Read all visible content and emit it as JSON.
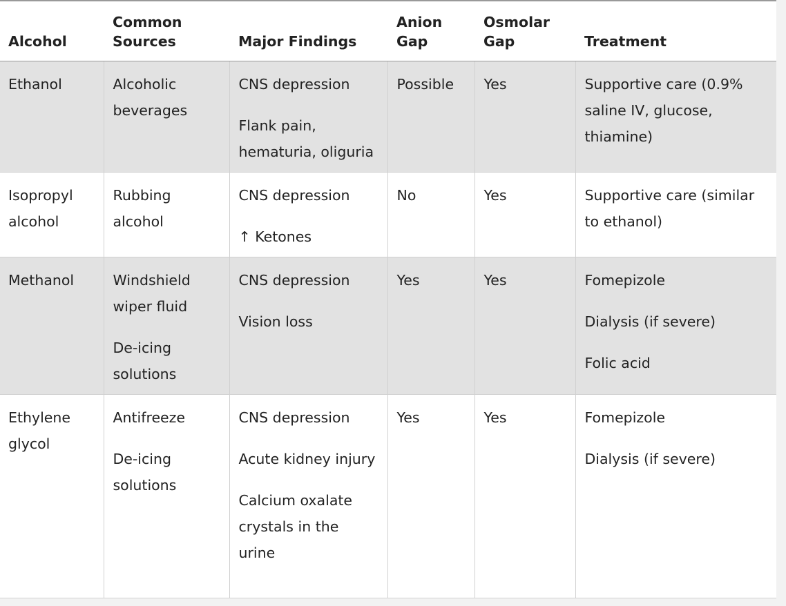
{
  "table": {
    "header": [
      "Alcohol",
      "Common Sources",
      "Major Findings",
      "Anion Gap",
      "Osmolar Gap",
      "Treatment"
    ],
    "rows": [
      [
        [
          "Ethanol"
        ],
        [
          "Alcoholic beverages"
        ],
        [
          "CNS depression",
          "Flank pain, hematuria, oliguria"
        ],
        [
          "Possible"
        ],
        [
          "Yes"
        ],
        [
          "Supportive care (0.9% saline IV, glucose, thiamine)"
        ]
      ],
      [
        [
          "Isopropyl alcohol"
        ],
        [
          "Rubbing alcohol"
        ],
        [
          "CNS depression",
          "↑ Ketones"
        ],
        [
          "No"
        ],
        [
          "Yes"
        ],
        [
          "Supportive care (similar to ethanol)"
        ]
      ],
      [
        [
          "Methanol"
        ],
        [
          "Windshield wiper fluid",
          "De-icing solutions"
        ],
        [
          "CNS depression",
          "Vision loss"
        ],
        [
          "Yes"
        ],
        [
          "Yes"
        ],
        [
          "Fomepizole",
          "Dialysis (if severe)",
          "Folic acid"
        ]
      ],
      [
        [
          "Ethylene glycol"
        ],
        [
          "Antifreeze",
          "De-icing solutions"
        ],
        [
          "CNS depression",
          "Acute kidney injury",
          "Calcium oxalate crystals in the urine"
        ],
        [
          "Yes"
        ],
        [
          "Yes"
        ],
        [
          "Fomepizole",
          "Dialysis (if severe)"
        ]
      ]
    ]
  }
}
